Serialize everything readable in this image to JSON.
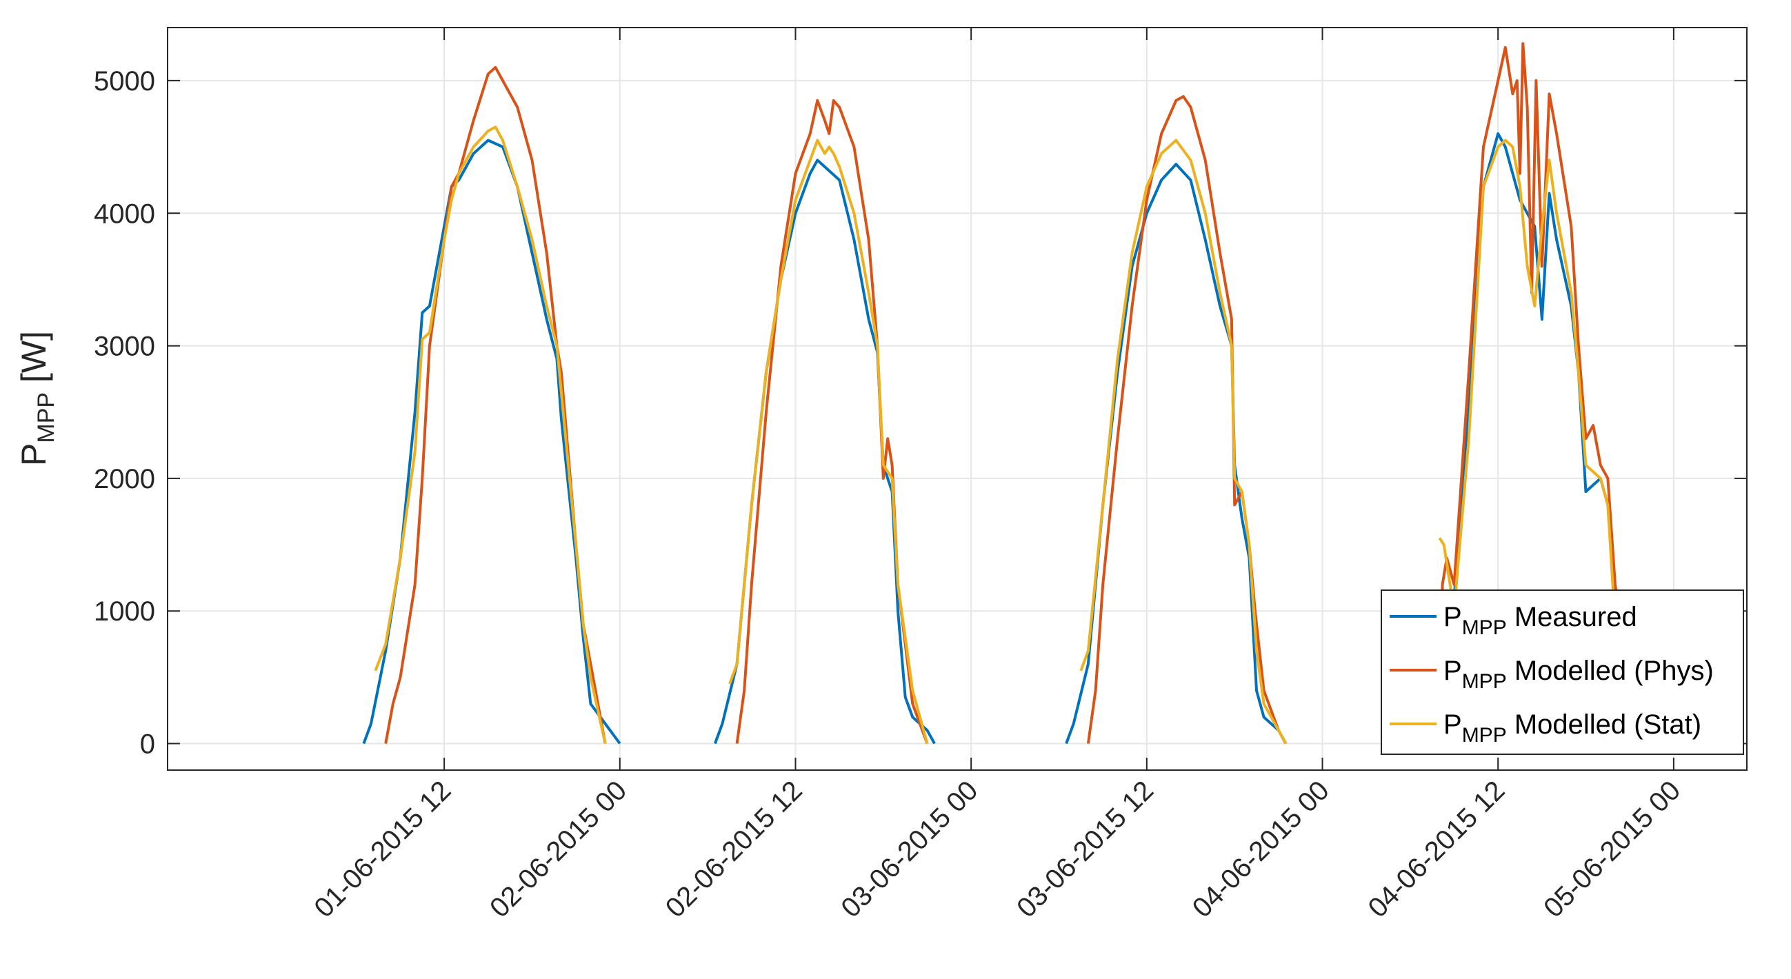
{
  "chart_data": {
    "type": "line",
    "ylabel": {
      "main": "P",
      "sub": "MPP",
      "unit": " [W]"
    },
    "ylim": [
      -200,
      5400
    ],
    "yticks": [
      0,
      1000,
      2000,
      3000,
      4000,
      5000
    ],
    "ytick_labels": [
      "0",
      "1000",
      "2000",
      "3000",
      "4000",
      "5000"
    ],
    "xlim_hours": [
      -6.9,
      101
    ],
    "xticks_hours": [
      12,
      24,
      36,
      48,
      60,
      72,
      84,
      96
    ],
    "xtick_labels": [
      "01-06-2015 12",
      "02-06-2015 00",
      "02-06-2015 12",
      "03-06-2015 00",
      "03-06-2015 12",
      "04-06-2015 00",
      "04-06-2015 12",
      "05-06-2015 00"
    ],
    "x_origin": "01-06-2015 00",
    "grid": true,
    "legend_position": "bottom-right",
    "series": [
      {
        "name": "Measured",
        "legend": {
          "main": "P",
          "sub": "MPP",
          "rest": " Measured"
        },
        "color": "#0072bd",
        "points": [
          [
            6.5,
            0
          ],
          [
            7,
            150
          ],
          [
            8,
            700
          ],
          [
            9,
            1400
          ],
          [
            10,
            2500
          ],
          [
            10.5,
            3250
          ],
          [
            11,
            3300
          ],
          [
            12,
            3900
          ],
          [
            12.5,
            4200
          ],
          [
            13,
            4250
          ],
          [
            14,
            4450
          ],
          [
            15,
            4550
          ],
          [
            16,
            4500
          ],
          [
            17,
            4200
          ],
          [
            18,
            3700
          ],
          [
            19,
            3200
          ],
          [
            19.7,
            2900
          ],
          [
            20,
            2450
          ],
          [
            21,
            1400
          ],
          [
            21.5,
            800
          ],
          [
            22,
            300
          ],
          [
            23,
            150
          ],
          [
            24,
            0
          ],
          [
            30.5,
            0
          ],
          [
            31,
            150
          ],
          [
            32,
            600
          ],
          [
            33,
            1800
          ],
          [
            34,
            2800
          ],
          [
            35,
            3500
          ],
          [
            36,
            4000
          ],
          [
            37,
            4300
          ],
          [
            37.5,
            4400
          ],
          [
            38,
            4350
          ],
          [
            39,
            4250
          ],
          [
            40,
            3800
          ],
          [
            41,
            3200
          ],
          [
            41.6,
            2950
          ],
          [
            42,
            2100
          ],
          [
            42.6,
            1900
          ],
          [
            43,
            1000
          ],
          [
            43.5,
            350
          ],
          [
            44,
            200
          ],
          [
            45,
            100
          ],
          [
            45.5,
            0
          ],
          [
            54.5,
            0
          ],
          [
            55,
            150
          ],
          [
            56,
            600
          ],
          [
            57,
            1800
          ],
          [
            58,
            2800
          ],
          [
            59,
            3600
          ],
          [
            60,
            4000
          ],
          [
            61,
            4250
          ],
          [
            62,
            4370
          ],
          [
            63,
            4250
          ],
          [
            64,
            3800
          ],
          [
            65,
            3300
          ],
          [
            65.8,
            3000
          ],
          [
            66,
            2100
          ],
          [
            66.5,
            1700
          ],
          [
            67,
            1400
          ],
          [
            67.5,
            400
          ],
          [
            68,
            200
          ],
          [
            69,
            100
          ],
          [
            69.5,
            0
          ],
          [
            79,
            0
          ],
          [
            80,
            400
          ],
          [
            80.3,
            800
          ],
          [
            81,
            1100
          ],
          [
            82,
            2500
          ],
          [
            83,
            4200
          ],
          [
            84,
            4600
          ],
          [
            84.5,
            4500
          ],
          [
            85,
            4300
          ],
          [
            85.5,
            4100
          ],
          [
            86,
            4000
          ],
          [
            86.5,
            3900
          ],
          [
            87,
            3200
          ],
          [
            87.5,
            4150
          ],
          [
            88,
            3800
          ],
          [
            89,
            3300
          ],
          [
            89.5,
            2800
          ],
          [
            90,
            1900
          ],
          [
            91,
            2000
          ],
          [
            91.5,
            1800
          ],
          [
            92,
            1000
          ],
          [
            92.5,
            1100
          ],
          [
            93,
            1000
          ],
          [
            94,
            0
          ],
          [
            101,
            0
          ]
        ]
      },
      {
        "name": "Modelled (Phys)",
        "legend": {
          "main": "P",
          "sub": "MPP",
          "rest": " Modelled (Phys)"
        },
        "color": "#d95319",
        "points": [
          [
            -6.9,
            0
          ],
          [
            8,
            0
          ],
          [
            8.5,
            300
          ],
          [
            9,
            500
          ],
          [
            10,
            1200
          ],
          [
            10.5,
            2000
          ],
          [
            11,
            3000
          ],
          [
            12,
            3800
          ],
          [
            12.5,
            4200
          ],
          [
            13,
            4300
          ],
          [
            14,
            4700
          ],
          [
            15,
            5050
          ],
          [
            15.5,
            5100
          ],
          [
            16,
            5000
          ],
          [
            17,
            4800
          ],
          [
            18,
            4400
          ],
          [
            19,
            3700
          ],
          [
            19.7,
            3000
          ],
          [
            20,
            2800
          ],
          [
            21,
            1500
          ],
          [
            21.5,
            900
          ],
          [
            22,
            600
          ],
          [
            22.5,
            300
          ],
          [
            23,
            0
          ],
          [
            32,
            0
          ],
          [
            32.5,
            400
          ],
          [
            33,
            1200
          ],
          [
            34,
            2500
          ],
          [
            35,
            3600
          ],
          [
            36,
            4300
          ],
          [
            37,
            4600
          ],
          [
            37.5,
            4850
          ],
          [
            38,
            4700
          ],
          [
            38.3,
            4600
          ],
          [
            38.6,
            4850
          ],
          [
            39,
            4800
          ],
          [
            40,
            4500
          ],
          [
            41,
            3800
          ],
          [
            41.6,
            3000
          ],
          [
            42,
            2000
          ],
          [
            42.3,
            2300
          ],
          [
            42.6,
            2100
          ],
          [
            43,
            1200
          ],
          [
            44,
            300
          ],
          [
            45,
            0
          ],
          [
            56,
            0
          ],
          [
            56.5,
            400
          ],
          [
            57,
            1200
          ],
          [
            58,
            2300
          ],
          [
            59,
            3300
          ],
          [
            60,
            4100
          ],
          [
            61,
            4600
          ],
          [
            62,
            4850
          ],
          [
            62.5,
            4880
          ],
          [
            63,
            4800
          ],
          [
            64,
            4400
          ],
          [
            65,
            3700
          ],
          [
            65.8,
            3200
          ],
          [
            66,
            1800
          ],
          [
            66.5,
            1900
          ],
          [
            67,
            1500
          ],
          [
            67.4,
            1000
          ],
          [
            68,
            400
          ],
          [
            69,
            100
          ],
          [
            69.5,
            0
          ],
          [
            80,
            0
          ],
          [
            80.2,
            1200
          ],
          [
            80.5,
            1400
          ],
          [
            81,
            1200
          ],
          [
            82,
            2800
          ],
          [
            83,
            4500
          ],
          [
            84,
            5000
          ],
          [
            84.5,
            5250
          ],
          [
            85,
            4900
          ],
          [
            85.3,
            5000
          ],
          [
            85.5,
            4300
          ],
          [
            85.7,
            5280
          ],
          [
            86,
            4800
          ],
          [
            86.3,
            3400
          ],
          [
            86.6,
            5000
          ],
          [
            87,
            3600
          ],
          [
            87.5,
            4900
          ],
          [
            88,
            4600
          ],
          [
            89,
            3900
          ],
          [
            89.5,
            3000
          ],
          [
            90,
            2300
          ],
          [
            90.5,
            2400
          ],
          [
            91,
            2100
          ],
          [
            91.5,
            2000
          ],
          [
            92,
            1200
          ],
          [
            92.5,
            800
          ],
          [
            93,
            400
          ],
          [
            94,
            0
          ],
          [
            101,
            0
          ]
        ]
      },
      {
        "name": "Modelled (Stat)",
        "legend": {
          "main": "P",
          "sub": "MPP",
          "rest": " Modelled (Stat)"
        },
        "color": "#edb120",
        "points": [
          [
            7.3,
            550
          ],
          [
            8,
            750
          ],
          [
            9,
            1400
          ],
          [
            10,
            2200
          ],
          [
            10.5,
            3050
          ],
          [
            11,
            3100
          ],
          [
            12,
            3800
          ],
          [
            12.5,
            4100
          ],
          [
            13,
            4300
          ],
          [
            14,
            4500
          ],
          [
            15,
            4620
          ],
          [
            15.5,
            4650
          ],
          [
            16,
            4550
          ],
          [
            17,
            4200
          ],
          [
            18,
            3800
          ],
          [
            19,
            3300
          ],
          [
            19.7,
            3000
          ],
          [
            20,
            2650
          ],
          [
            21,
            1500
          ],
          [
            21.5,
            900
          ],
          [
            22,
            500
          ],
          [
            22.5,
            250
          ],
          [
            23,
            0
          ],
          [
            31.5,
            450
          ],
          [
            32,
            600
          ],
          [
            33,
            1800
          ],
          [
            34,
            2800
          ],
          [
            35,
            3500
          ],
          [
            36,
            4100
          ],
          [
            37,
            4400
          ],
          [
            37.5,
            4550
          ],
          [
            38,
            4450
          ],
          [
            38.3,
            4500
          ],
          [
            38.6,
            4450
          ],
          [
            39,
            4350
          ],
          [
            40,
            4000
          ],
          [
            41,
            3400
          ],
          [
            41.6,
            3000
          ],
          [
            42,
            2100
          ],
          [
            42.6,
            2000
          ],
          [
            43,
            1200
          ],
          [
            44,
            400
          ],
          [
            45,
            0
          ],
          [
            55.5,
            550
          ],
          [
            56,
            700
          ],
          [
            57,
            1800
          ],
          [
            58,
            2900
          ],
          [
            59,
            3700
          ],
          [
            60,
            4200
          ],
          [
            61,
            4450
          ],
          [
            62,
            4550
          ],
          [
            63,
            4400
          ],
          [
            64,
            4000
          ],
          [
            65,
            3400
          ],
          [
            65.8,
            3000
          ],
          [
            66,
            2000
          ],
          [
            66.5,
            1900
          ],
          [
            67,
            1500
          ],
          [
            67.5,
            700
          ],
          [
            68,
            300
          ],
          [
            69,
            100
          ],
          [
            69.5,
            0
          ],
          [
            80,
            1550
          ],
          [
            80.3,
            1500
          ],
          [
            81,
            1000
          ],
          [
            82,
            2300
          ],
          [
            83,
            4200
          ],
          [
            84,
            4500
          ],
          [
            84.5,
            4550
          ],
          [
            85,
            4500
          ],
          [
            85.5,
            4200
          ],
          [
            86,
            3600
          ],
          [
            86.5,
            3300
          ],
          [
            87,
            3900
          ],
          [
            87.5,
            4400
          ],
          [
            88,
            4000
          ],
          [
            89,
            3400
          ],
          [
            89.5,
            2800
          ],
          [
            90,
            2100
          ],
          [
            91,
            2000
          ],
          [
            91.5,
            1800
          ],
          [
            92,
            900
          ],
          [
            93,
            200
          ],
          [
            94,
            0
          ],
          [
            101,
            0
          ]
        ]
      }
    ]
  }
}
